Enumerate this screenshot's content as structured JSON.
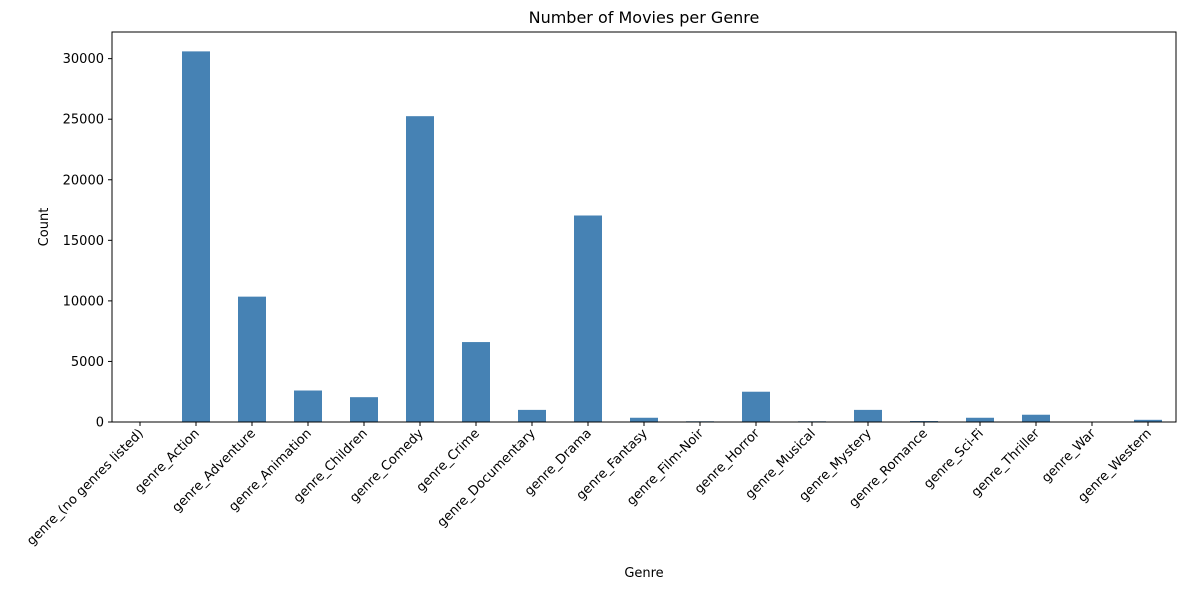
{
  "chart_data": {
    "type": "bar",
    "title": "Number of Movies per Genre",
    "xlabel": "Genre",
    "ylabel": "Count",
    "ylim": [
      0,
      32200
    ],
    "yticks": [
      0,
      5000,
      10000,
      15000,
      20000,
      25000,
      30000
    ],
    "grid": false,
    "bar_color": "#4682b4",
    "categories": [
      "genre_(no genres listed)",
      "genre_Action",
      "genre_Adventure",
      "genre_Animation",
      "genre_Children",
      "genre_Comedy",
      "genre_Crime",
      "genre_Documentary",
      "genre_Drama",
      "genre_Fantasy",
      "genre_Film-Noir",
      "genre_Horror",
      "genre_Musical",
      "genre_Mystery",
      "genre_Romance",
      "genre_Sci-Fi",
      "genre_Thriller",
      "genre_War",
      "genre_Western"
    ],
    "values": [
      0,
      30600,
      10350,
      2600,
      2050,
      25250,
      6600,
      1000,
      17050,
      350,
      60,
      2500,
      60,
      1000,
      80,
      350,
      600,
      0,
      180
    ]
  }
}
